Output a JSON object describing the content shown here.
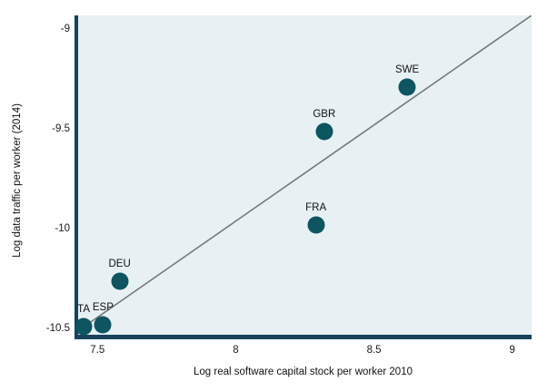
{
  "chart_data": {
    "type": "scatter",
    "title": "",
    "xlabel": "Log real software capital stock per worker 2010",
    "ylabel": "Log data traffic per worker (2014)",
    "xlim": [
      7.43,
      9.07
    ],
    "ylim": [
      -10.53,
      -8.93
    ],
    "xticks": [
      7.5,
      8,
      8.5,
      9
    ],
    "yticks": [
      -9,
      -9.5,
      -10,
      -10.5
    ],
    "grid": false,
    "legend": false,
    "points": [
      {
        "label": "TA",
        "x": 7.45,
        "y": -10.49
      },
      {
        "label": "ESP",
        "x": 7.52,
        "y": -10.48
      },
      {
        "label": "DEU",
        "x": 7.58,
        "y": -10.26
      },
      {
        "label": "FRA",
        "x": 8.29,
        "y": -9.98
      },
      {
        "label": "GBR",
        "x": 8.32,
        "y": -9.51
      },
      {
        "label": "SWE",
        "x": 8.62,
        "y": -9.29
      }
    ],
    "trendline": {
      "x1": 7.43,
      "y1": -10.51,
      "x2": 9.07,
      "y2": -8.93
    },
    "colors": {
      "dot": "#0d5560",
      "trendline": "#787878",
      "axis": "#16425c",
      "plot_bg": "#e7f0f3",
      "text": "#1a1a1a"
    }
  }
}
